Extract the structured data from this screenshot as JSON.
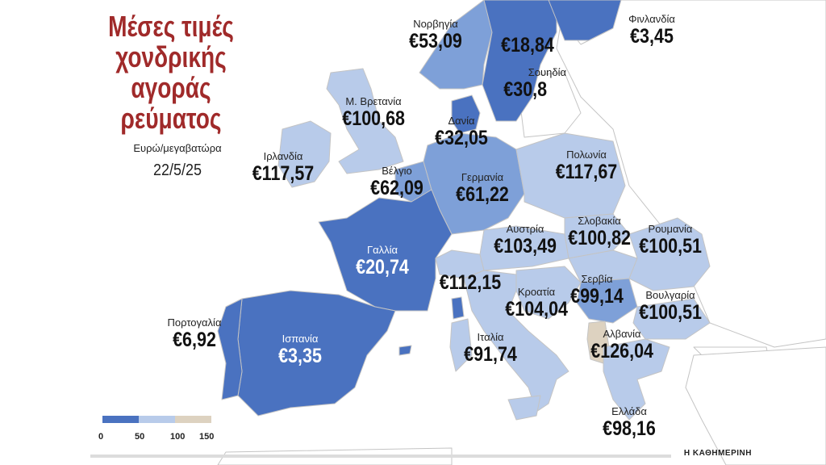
{
  "title": [
    "Μέσες τιμές",
    "χονδρικής",
    "αγοράς",
    "ρεύματος"
  ],
  "subtitle": "Ευρώ/μεγαβατώρα",
  "date": "22/5/25",
  "brand": "Η ΚΑΘΗΜΕΡΙΝΗ",
  "colors": {
    "dark": "#4a72c0",
    "medium": "#7ea0d8",
    "light": "#b8cbea",
    "tan": "#ddd2c0",
    "none": "#ffffff",
    "border": "#c4c4c4",
    "title": "#a02a2a"
  },
  "countries": [
    {
      "id": "norway",
      "name": "Νορβηγία",
      "price": "€53,09",
      "cls": "medium"
    },
    {
      "id": "sweden",
      "name": "",
      "price": "€18,84",
      "cls": "dark"
    },
    {
      "id": "sweden-south",
      "name": "Σουηδία",
      "price": "€30,8",
      "cls": "dark"
    },
    {
      "id": "finland",
      "name": "Φινλανδία",
      "price": "€3,45",
      "cls": "dark"
    },
    {
      "id": "uk",
      "name": "Μ. Βρετανία",
      "price": "€100,68",
      "cls": "light"
    },
    {
      "id": "ireland",
      "name": "Ιρλανδία",
      "price": "€117,57",
      "cls": "light"
    },
    {
      "id": "denmark",
      "name": "Δανία",
      "price": "€32,05",
      "cls": "dark"
    },
    {
      "id": "belgium",
      "name": "Βέλγιο",
      "price": "€62,09",
      "cls": "medium"
    },
    {
      "id": "germany",
      "name": "Γερμανία",
      "price": "€61,22",
      "cls": "medium"
    },
    {
      "id": "poland",
      "name": "Πολωνία",
      "price": "€117,67",
      "cls": "light"
    },
    {
      "id": "france",
      "name": "Γαλλία",
      "price": "€20,74",
      "cls": "dark"
    },
    {
      "id": "austria",
      "name": "Αυστρία",
      "price": "€103,49",
      "cls": "light"
    },
    {
      "id": "slovakia",
      "name": "Σλοβακία",
      "price": "€100,82",
      "cls": "light"
    },
    {
      "id": "romania",
      "name": "Ρουμανία",
      "price": "€100,51",
      "cls": "light"
    },
    {
      "id": "switzerland",
      "name": "",
      "price": "€112,15",
      "cls": "light"
    },
    {
      "id": "croatia",
      "name": "Κροατία",
      "price": "€104,04",
      "cls": "light"
    },
    {
      "id": "serbia",
      "name": "Σερβία",
      "price": "€99,14",
      "cls": "medium"
    },
    {
      "id": "bulgaria",
      "name": "Βουλγαρία",
      "price": "€100,51",
      "cls": "light"
    },
    {
      "id": "albania",
      "name": "Αλβανία",
      "price": "€126,04",
      "cls": "tan"
    },
    {
      "id": "portugal",
      "name": "Πορτογαλία",
      "price": "€6,92",
      "cls": "dark"
    },
    {
      "id": "spain",
      "name": "Ισπανία",
      "price": "€3,35",
      "cls": "dark"
    },
    {
      "id": "italy",
      "name": "Ιταλία",
      "price": "€91,74",
      "cls": "light"
    },
    {
      "id": "greece",
      "name": "Ελλάδα",
      "price": "€98,16",
      "cls": "light"
    }
  ],
  "legend": {
    "ticks": [
      "0",
      "50",
      "100",
      "150"
    ]
  }
}
